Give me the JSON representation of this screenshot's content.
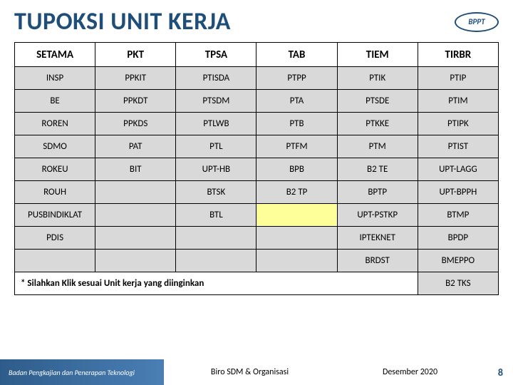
{
  "title": "TUPOKSI UNIT KERJA",
  "logo": {
    "text": "BPPT",
    "sub": "BADAN PENGKAJIAN DAN PENERAPAN TEKNOLOGI"
  },
  "headers": [
    "SETAMA",
    "PKT",
    "TPSA",
    "TAB",
    "TIEM",
    "TIRBR"
  ],
  "rows": [
    [
      "INSP",
      "PPKIT",
      "PTISDA",
      "PTPP",
      "PTIK",
      "PTIP"
    ],
    [
      "BE",
      "PPKDT",
      "PTSDM",
      "PTA",
      "PTSDE",
      "PTIM"
    ],
    [
      "ROREN",
      "PPKDS",
      "PTLWB",
      "PTB",
      "PTKKE",
      "PTIPK"
    ],
    [
      "SDMO",
      "PAT",
      "PTL",
      "PTFM",
      "PTM",
      "PTIST"
    ],
    [
      "ROKEU",
      "BIT",
      "UPT-HB",
      "BPB",
      "B2 TE",
      "UPT-LAGG"
    ],
    [
      "ROUH",
      "",
      "BTSK",
      "B2 TP",
      "BPTP",
      "UPT-BPPH"
    ],
    [
      "PUSBINDIKLAT",
      "",
      "BTL",
      "",
      "UPT-PSTKP",
      "BTMP"
    ],
    [
      "PDIS",
      "",
      "",
      "",
      "IPTEKNET",
      "BPDP"
    ],
    [
      "",
      "",
      "",
      "",
      "BRDST",
      "BMEPPO"
    ]
  ],
  "yellowCells": [
    [
      6,
      3
    ]
  ],
  "instruction": "* Silahkan Klik sesuai Unit kerja yang diinginkan",
  "lastCell": "B2 TKS",
  "footer": {
    "org": "Badan Pengkajian dan Penerapan Teknologi",
    "mid1": "Biro SDM & Organisasi",
    "mid2": "Desember 2020",
    "page": "8"
  },
  "colors": {
    "titleColor": "#1f4e79",
    "cellBg": "#d9d9d9",
    "yellowBg": "#ffff99"
  }
}
